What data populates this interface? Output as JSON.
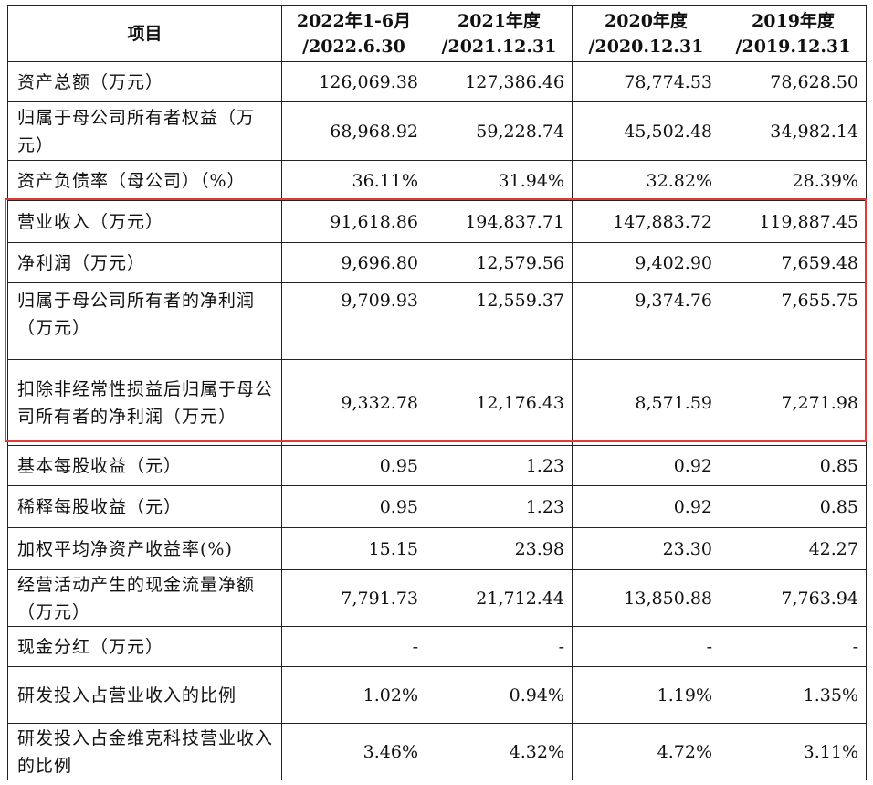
{
  "header": {
    "item": "项目",
    "cols": [
      {
        "line1": "2022年1-6月",
        "line2": "/2022.6.30"
      },
      {
        "line1": "2021年度",
        "line2": "/2021.12.31"
      },
      {
        "line1": "2020年度",
        "line2": "/2020.12.31"
      },
      {
        "line1": "2019年度",
        "line2": "/2019.12.31"
      }
    ]
  },
  "rows": [
    {
      "label": "资产总额（万元）",
      "values": [
        "126,069.38",
        "127,386.46",
        "78,774.53",
        "78,628.50"
      ]
    },
    {
      "label": "归属于母公司所有者权益（万元）",
      "values": [
        "68,968.92",
        "59,228.74",
        "45,502.48",
        "34,982.14"
      ]
    },
    {
      "label": "资产负债率（母公司）（%）",
      "values": [
        "36.11%",
        "31.94%",
        "32.82%",
        "28.39%"
      ]
    },
    {
      "label": "营业收入（万元）",
      "values": [
        "91,618.86",
        "194,837.71",
        "147,883.72",
        "119,887.45"
      ]
    },
    {
      "label": "净利润（万元）",
      "values": [
        "9,696.80",
        "12,579.56",
        "9,402.90",
        "7,659.48"
      ]
    },
    {
      "label": "归属于母公司所有者的净利润（万元）",
      "values": [
        "9,709.93",
        "12,559.37",
        "9,374.76",
        "7,655.75"
      ]
    },
    {
      "label": "扣除非经常性损益后归属于母公司所有者的净利润（万元）",
      "values": [
        "9,332.78",
        "12,176.43",
        "8,571.59",
        "7,271.98"
      ]
    },
    {
      "label": "基本每股收益（元）",
      "values": [
        "0.95",
        "1.23",
        "0.92",
        "0.85"
      ]
    },
    {
      "label": "稀释每股收益（元）",
      "values": [
        "0.95",
        "1.23",
        "0.92",
        "0.85"
      ]
    },
    {
      "label": "加权平均净资产收益率(%)",
      "values": [
        "15.15",
        "23.98",
        "23.30",
        "42.27"
      ]
    },
    {
      "label": "经营活动产生的现金流量净额（万元）",
      "values": [
        "7,791.73",
        "21,712.44",
        "13,850.88",
        "7,763.94"
      ]
    },
    {
      "label": "现金分红（万元）",
      "values": [
        "-",
        "-",
        "-",
        "-"
      ]
    },
    {
      "label": "研发投入占营业收入的比例",
      "values": [
        "1.02%",
        "0.94%",
        "1.19%",
        "1.35%"
      ]
    },
    {
      "label": "研发投入占金维克科技营业收入的比例",
      "values": [
        "3.46%",
        "4.32%",
        "4.72%",
        "3.11%"
      ]
    }
  ],
  "colors": {
    "highlight_border": "#e03a3a",
    "grid": "#222222"
  }
}
